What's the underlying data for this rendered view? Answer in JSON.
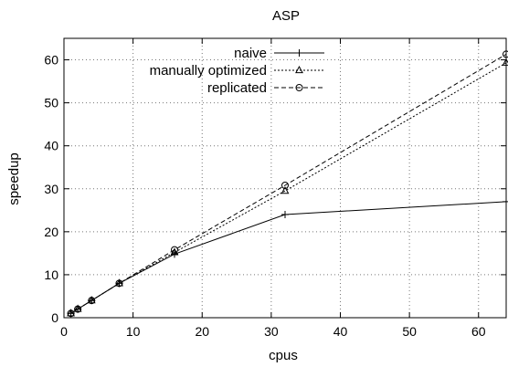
{
  "chart_data": {
    "type": "line",
    "title": "ASP",
    "xlabel": "cpus",
    "ylabel": "speedup",
    "xlim": [
      0,
      64
    ],
    "ylim": [
      0,
      65
    ],
    "xticks": [
      0,
      10,
      20,
      30,
      40,
      50,
      60
    ],
    "yticks": [
      0,
      10,
      20,
      30,
      40,
      50,
      60
    ],
    "grid": true,
    "legend_position": "top-left",
    "series": [
      {
        "name": "naive",
        "marker": "plus",
        "dash": "solid",
        "color": "#000000",
        "x": [
          1,
          2,
          4,
          8,
          16,
          32,
          64
        ],
        "y": [
          1,
          2,
          4,
          8,
          14.8,
          24,
          27
        ]
      },
      {
        "name": "manually optimized",
        "marker": "triangle",
        "dash": "dotted",
        "color": "#000000",
        "x": [
          1,
          2,
          4,
          8,
          16,
          32,
          64
        ],
        "y": [
          1,
          2,
          4,
          8,
          15.2,
          29.5,
          59.3
        ]
      },
      {
        "name": "replicated",
        "marker": "circle",
        "dash": "dashed",
        "color": "#000000",
        "x": [
          1,
          2,
          4,
          8,
          16,
          32,
          64
        ],
        "y": [
          1,
          2,
          4,
          8,
          15.8,
          30.8,
          61.3
        ]
      }
    ]
  }
}
